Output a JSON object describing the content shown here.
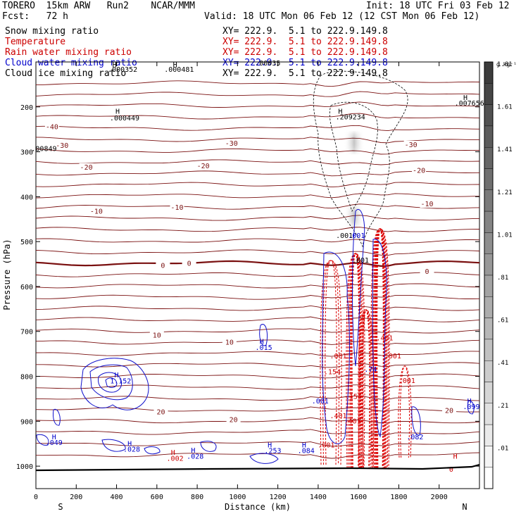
{
  "header": {
    "model": "TORERO  15km ARW   Run2    NCAR/MMM",
    "init": "Init: 18 UTC Fri 03 Feb 12",
    "fcst": "Fcst:   72 h",
    "valid": "Valid: 18 UTC Mon 06 Feb 12 (12 CST Mon 06 Feb 12)"
  },
  "legend": [
    {
      "label": "Snow mixing ratio",
      "xy": "XY= 222.9.  5.1 to 222.9.149.8",
      "color": "#000000"
    },
    {
      "label": "Temperature",
      "xy": "XY= 222.9.  5.1 to 222.9.149.8",
      "color": "#cc0000"
    },
    {
      "label": "Rain water mixing ratio",
      "xy": "XY= 222.9.  5.1 to 222.9.149.8",
      "color": "#cc0000"
    },
    {
      "label": "Cloud water mixing ratio",
      "xy": "XY= 222.9.  5.1 to 222.9.149.8",
      "color": "#0000cc"
    },
    {
      "label": "Cloud ice mixing ratio",
      "xy": "XY= 222.9.  5.1 to 222.9.149.8",
      "color": "#000000"
    }
  ],
  "chart_data": {
    "type": "cross-section",
    "xlabel": "Distance (km)",
    "ylabel": "Pressure (hPa)",
    "xlim": [
      0,
      2200
    ],
    "ylim": [
      1050,
      100
    ],
    "xticks": [
      0,
      200,
      400,
      600,
      800,
      1000,
      1200,
      1400,
      1600,
      1800,
      2000
    ],
    "yticks": [
      200,
      300,
      400,
      500,
      600,
      700,
      800,
      900,
      1000
    ],
    "x_end_labels": {
      "left": "S",
      "right": "N"
    },
    "colorbar": {
      "unit": "g kg⁻¹",
      "labels": [
        "1.81",
        "1.61",
        "1.41",
        "1.21",
        "1.01",
        ".81",
        ".61",
        ".41",
        ".21",
        ".01"
      ]
    },
    "temperature_labels": [
      {
        "text": "-40",
        "x": 80,
        "p": 248
      },
      {
        "text": "-30",
        "x": 130,
        "p": 290
      },
      {
        "text": "-30",
        "x": 970,
        "p": 285
      },
      {
        "text": "-30",
        "x": 1860,
        "p": 288
      },
      {
        "text": "-20",
        "x": 250,
        "p": 338
      },
      {
        "text": "-20",
        "x": 830,
        "p": 335
      },
      {
        "text": "-20",
        "x": 1900,
        "p": 345
      },
      {
        "text": "-10",
        "x": 300,
        "p": 436
      },
      {
        "text": "-10",
        "x": 700,
        "p": 428
      },
      {
        "text": "-10",
        "x": 1940,
        "p": 420
      },
      {
        "text": "0",
        "x": 630,
        "p": 557
      },
      {
        "text": "0",
        "x": 760,
        "p": 552
      },
      {
        "text": "0",
        "x": 1940,
        "p": 570
      },
      {
        "text": "10",
        "x": 600,
        "p": 712
      },
      {
        "text": "10",
        "x": 960,
        "p": 728
      },
      {
        "text": "20",
        "x": 620,
        "p": 883
      },
      {
        "text": "20",
        "x": 980,
        "p": 900
      },
      {
        "text": "20",
        "x": 2050,
        "p": 880
      }
    ],
    "value_labels": [
      {
        "text": "H",
        "x": 390,
        "p": 112,
        "color": "#000000"
      },
      {
        "text": ".000352",
        "x": 430,
        "p": 122,
        "color": "#000000"
      },
      {
        "text": "H",
        "x": 690,
        "p": 112,
        "color": "#000000"
      },
      {
        "text": ".000481",
        "x": 710,
        "p": 122,
        "color": "#000000"
      },
      {
        "text": "H",
        "x": 405,
        "p": 215,
        "color": "#000000"
      },
      {
        "text": ".000449",
        "x": 440,
        "p": 230,
        "color": "#000000"
      },
      {
        "text": "H",
        "x": 1510,
        "p": 215,
        "color": "#000000"
      },
      {
        "text": ".209234",
        "x": 1560,
        "p": 228,
        "color": "#000000"
      },
      {
        "text": "H",
        "x": 2130,
        "p": 185,
        "color": "#000000"
      },
      {
        "text": ".007656",
        "x": 2150,
        "p": 197,
        "color": "#000000"
      },
      {
        "text": ".00849",
        "x": 40,
        "p": 298,
        "color": "#000000"
      },
      {
        "text": ".00035",
        "x": 1150,
        "p": 108,
        "color": "#000000"
      },
      {
        "text": ".001",
        "x": 1530,
        "p": 492,
        "color": "#000000"
      },
      {
        "text": ".001",
        "x": 1590,
        "p": 492,
        "color": "#0000cc"
      },
      {
        "text": ".001",
        "x": 1610,
        "p": 547,
        "color": "#000000"
      },
      {
        "text": "H",
        "x": 1120,
        "p": 728,
        "color": "#0000cc"
      },
      {
        "text": ".015",
        "x": 1130,
        "p": 741,
        "color": "#0000cc"
      },
      {
        "text": "H",
        "x": 400,
        "p": 802,
        "color": "#0000cc"
      },
      {
        "text": "1.152",
        "x": 420,
        "p": 816,
        "color": "#0000cc"
      },
      {
        "text": "H",
        "x": 90,
        "p": 940,
        "color": "#0000cc"
      },
      {
        "text": ".049",
        "x": 90,
        "p": 953,
        "color": "#0000cc"
      },
      {
        "text": "H",
        "x": 465,
        "p": 955,
        "color": "#0000cc"
      },
      {
        "text": ".028",
        "x": 475,
        "p": 968,
        "color": "#0000cc"
      },
      {
        "text": "H",
        "x": 780,
        "p": 970,
        "color": "#0000cc"
      },
      {
        "text": ".028",
        "x": 790,
        "p": 983,
        "color": "#0000cc"
      },
      {
        "text": "H",
        "x": 680,
        "p": 975,
        "color": "#cc0000"
      },
      {
        "text": ".002",
        "x": 690,
        "p": 988,
        "color": "#cc0000"
      },
      {
        "text": "H",
        "x": 1160,
        "p": 958,
        "color": "#0000cc"
      },
      {
        "text": ".253",
        "x": 1175,
        "p": 971,
        "color": "#0000cc"
      },
      {
        "text": "H",
        "x": 1330,
        "p": 958,
        "color": "#0000cc"
      },
      {
        "text": ".084",
        "x": 1340,
        "p": 971,
        "color": "#0000cc"
      },
      {
        "text": ".001",
        "x": 1440,
        "p": 958,
        "color": "#cc0000"
      },
      {
        "text": ".401",
        "x": 1500,
        "p": 893,
        "color": "#cc0000"
      },
      {
        "text": ".401",
        "x": 1570,
        "p": 905,
        "color": "#cc0000"
      },
      {
        "text": ".154",
        "x": 1575,
        "p": 850,
        "color": "#cc0000"
      },
      {
        "text": ".154",
        "x": 1470,
        "p": 795,
        "color": "#cc0000"
      },
      {
        "text": ".001",
        "x": 1500,
        "p": 760,
        "color": "#cc0000"
      },
      {
        "text": ".401",
        "x": 1730,
        "p": 720,
        "color": "#cc0000"
      },
      {
        "text": ".001",
        "x": 1770,
        "p": 760,
        "color": "#cc0000"
      },
      {
        "text": ".001",
        "x": 1840,
        "p": 815,
        "color": "#cc0000"
      },
      {
        "text": ".001",
        "x": 1410,
        "p": 860,
        "color": "#0000cc"
      },
      {
        "text": ".74",
        "x": 1660,
        "p": 790,
        "color": "#0000cc"
      },
      {
        "text": ".082",
        "x": 1880,
        "p": 940,
        "color": "#0000cc"
      },
      {
        "text": "H",
        "x": 2150,
        "p": 860,
        "color": "#0000cc"
      },
      {
        "text": ".099",
        "x": 2160,
        "p": 873,
        "color": "#0000cc"
      },
      {
        "text": "H",
        "x": 2080,
        "p": 983,
        "color": "#cc0000"
      },
      {
        "text": "0",
        "x": 2060,
        "p": 1012,
        "color": "#cc0000"
      }
    ]
  }
}
